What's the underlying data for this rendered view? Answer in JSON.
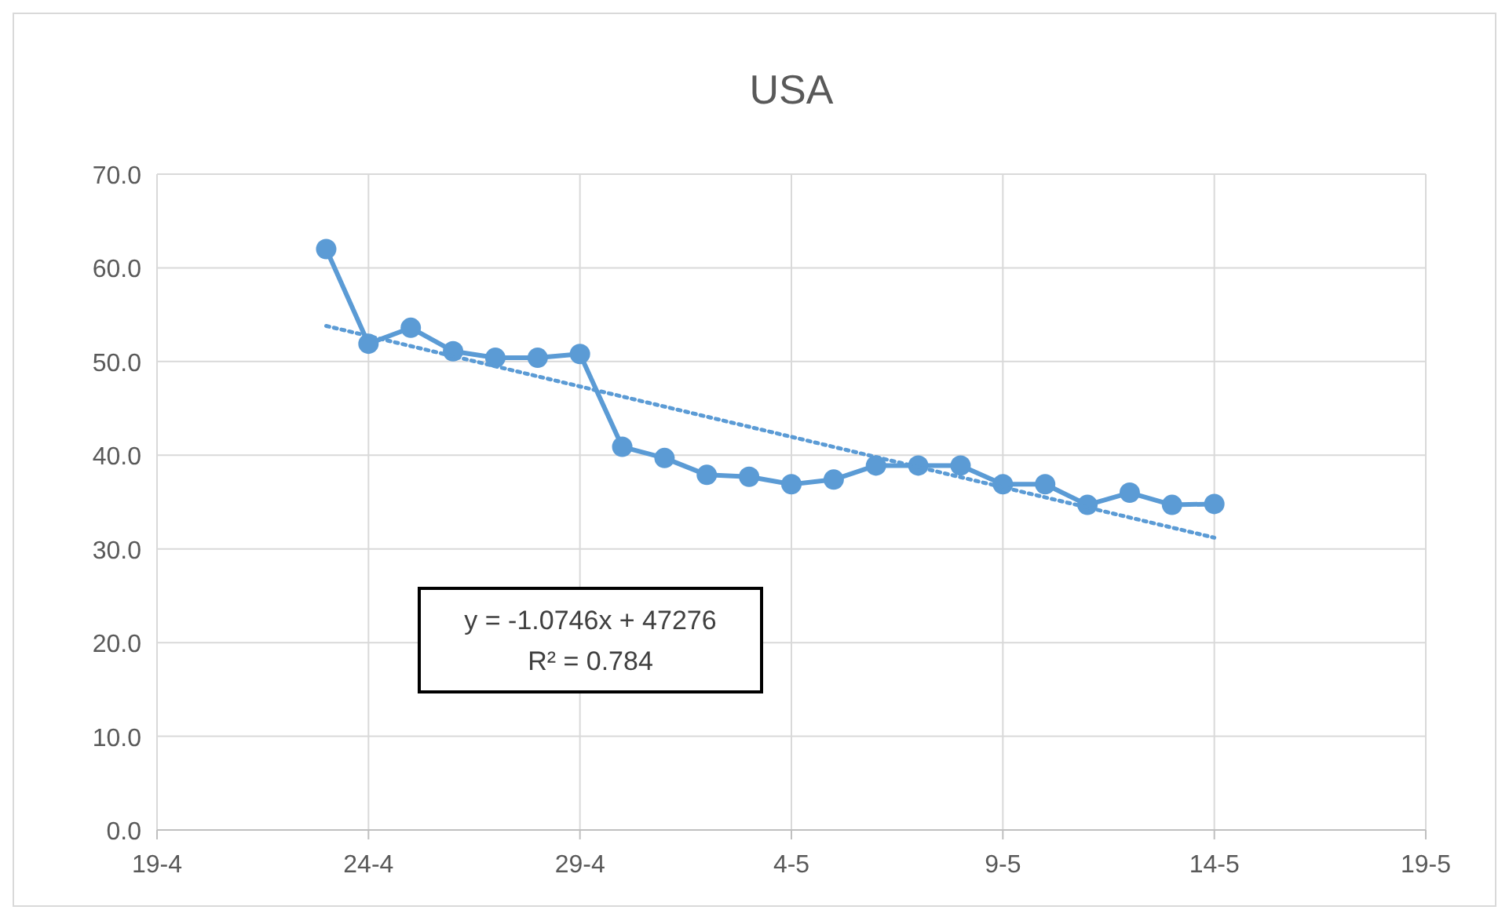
{
  "chart_data": {
    "type": "line",
    "title": "USA",
    "xlim": [
      "--04-19",
      "--05-19"
    ],
    "xticks": [
      {
        "value": "--04-19",
        "label": "19-4"
      },
      {
        "value": "--04-24",
        "label": "24-4"
      },
      {
        "value": "--04-29",
        "label": "29-4"
      },
      {
        "value": "--05-04",
        "label": "4-5"
      },
      {
        "value": "--05-09",
        "label": "9-5"
      },
      {
        "value": "--05-14",
        "label": "14-5"
      },
      {
        "value": "--05-19",
        "label": "19-5"
      }
    ],
    "ylim": [
      0,
      70
    ],
    "yticks": [
      {
        "value": 0,
        "label": "0.0"
      },
      {
        "value": 10,
        "label": "10.0"
      },
      {
        "value": 20,
        "label": "20.0"
      },
      {
        "value": 30,
        "label": "30.0"
      },
      {
        "value": 40,
        "label": "40.0"
      },
      {
        "value": 50,
        "label": "50.0"
      },
      {
        "value": 60,
        "label": "60.0"
      },
      {
        "value": 70,
        "label": "70.0"
      }
    ],
    "grid": true,
    "series": [
      {
        "color": "#5b9bd5",
        "marker": "circle",
        "line_style": "solid",
        "x": [
          "--04-23",
          "--04-24",
          "--04-25",
          "--04-26",
          "--04-27",
          "--04-28",
          "--04-29",
          "--04-30",
          "--05-01",
          "--05-02",
          "--05-03",
          "--05-04",
          "--05-05",
          "--05-06",
          "--05-07",
          "--05-08",
          "--05-09",
          "--05-10",
          "--05-11",
          "--05-12",
          "--05-13",
          "--05-14"
        ],
        "values": [
          62.0,
          51.9,
          53.6,
          51.1,
          50.4,
          50.4,
          50.8,
          40.9,
          39.7,
          37.9,
          37.7,
          36.9,
          37.4,
          38.9,
          38.9,
          38.9,
          36.9,
          36.9,
          34.7,
          36.0,
          34.7,
          34.8
        ]
      },
      {
        "color": "#5b9bd5",
        "marker": "none",
        "line_style": "dotted",
        "x": [
          "--04-23",
          "--05-14"
        ],
        "values": [
          53.8,
          31.2
        ]
      }
    ],
    "annotations": [
      "y = -1.0746x + 47276",
      "R² = 0.784"
    ]
  }
}
